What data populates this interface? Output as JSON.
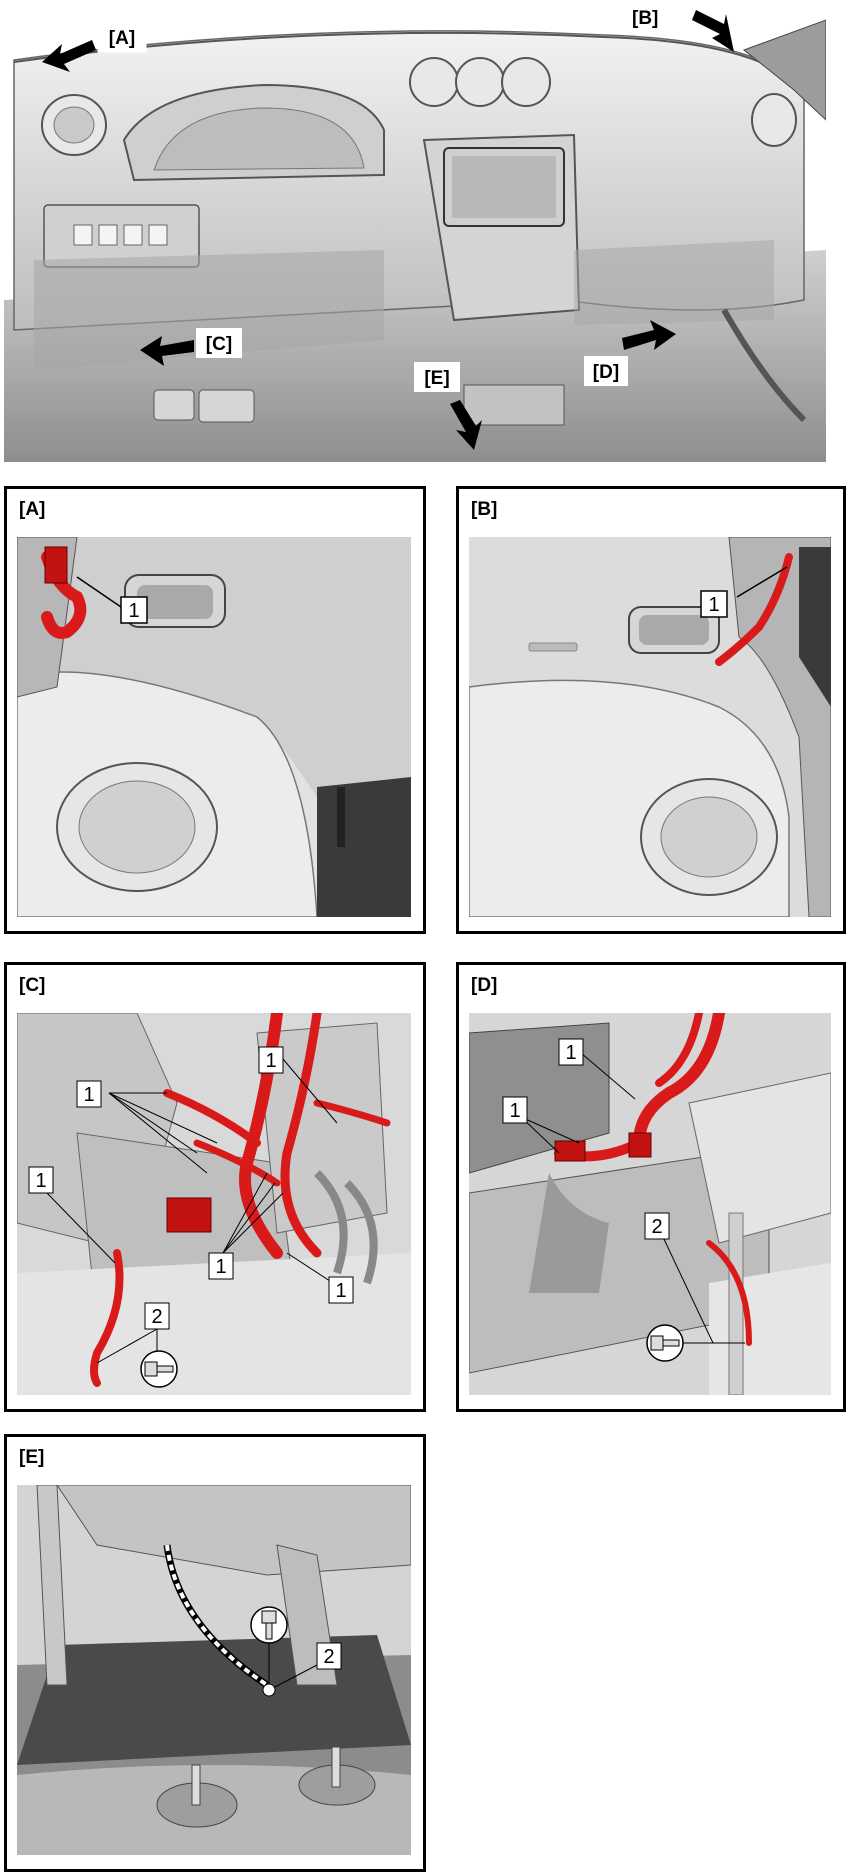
{
  "overview": {
    "labels": {
      "a": "[A]",
      "b": "[B]",
      "c": "[C]",
      "d": "[D]",
      "e": "[E]"
    }
  },
  "panels": {
    "a": {
      "title": "[A]",
      "callouts": [
        "1"
      ]
    },
    "b": {
      "title": "[B]",
      "callouts": [
        "1"
      ]
    },
    "c": {
      "title": "[C]",
      "callouts": [
        "1",
        "1",
        "1",
        "1",
        "1",
        "2"
      ]
    },
    "d": {
      "title": "[D]",
      "callouts": [
        "1",
        "1",
        "2"
      ]
    },
    "e": {
      "title": "[E]",
      "callouts": [
        "2"
      ]
    }
  },
  "colors": {
    "harness": "#d91a1a",
    "body": "#d8d8d8",
    "shadow": "#9a9a9a",
    "outline": "#000000"
  }
}
